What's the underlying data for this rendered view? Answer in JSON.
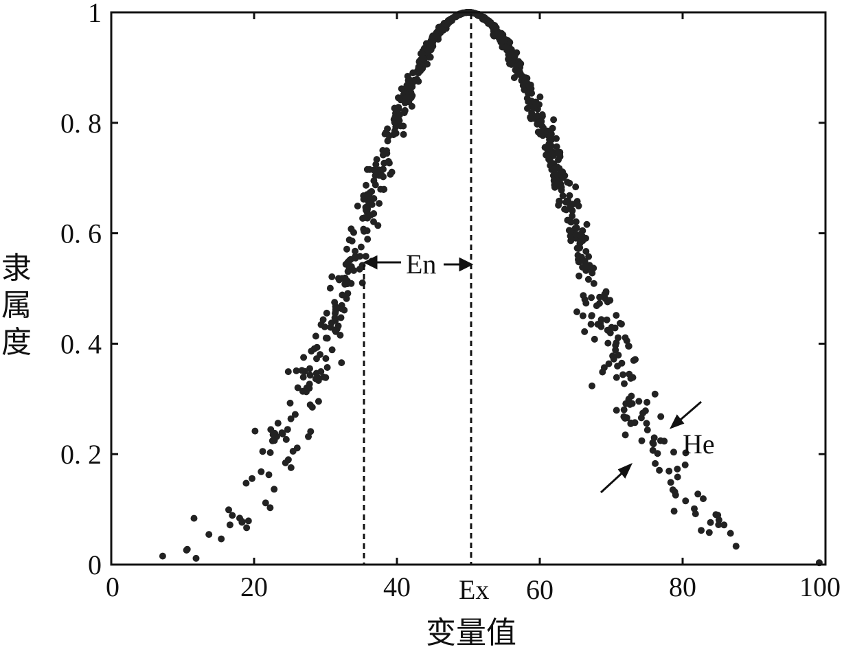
{
  "chart_data": {
    "type": "scatter",
    "title": "",
    "xlabel": "变量值",
    "ylabel": "隶属度",
    "xlim": [
      0,
      100
    ],
    "ylim": [
      0,
      1
    ],
    "grid": false,
    "x_ticks": [
      0,
      20,
      40,
      60,
      80,
      100
    ],
    "x_tick_labels": [
      "0",
      "20",
      "40",
      "60",
      "80",
      "100"
    ],
    "y_ticks": [
      0,
      0.2,
      0.4,
      0.6,
      0.8,
      1
    ],
    "y_tick_labels": [
      "0",
      "0. 2",
      "0. 4",
      "0. 6",
      "0. 8",
      "1"
    ],
    "cloud_model": {
      "Ex": 50,
      "En": 15,
      "He": 1,
      "drops": 900
    },
    "annotations": {
      "en_label": "En",
      "ex_label": "Ex",
      "he_label": "He"
    },
    "colors": {
      "points": "#222222",
      "axes": "#111111"
    }
  }
}
